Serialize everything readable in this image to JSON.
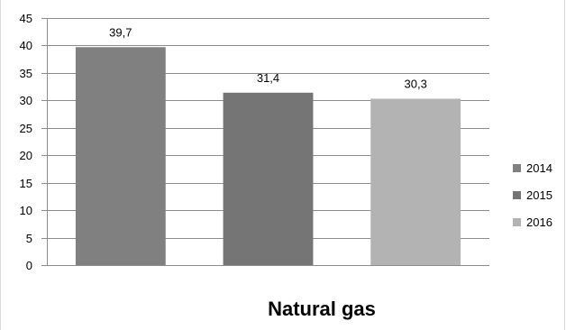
{
  "chart_data": {
    "type": "bar",
    "categories": [
      "Natural gas"
    ],
    "series": [
      {
        "name": "2014",
        "values": [
          39.7
        ],
        "label": "39,7",
        "color": "#808080"
      },
      {
        "name": "2015",
        "values": [
          31.4
        ],
        "label": "31,4",
        "color": "#757575"
      },
      {
        "name": "2016",
        "values": [
          30.3
        ],
        "label": "30,3",
        "color": "#b3b3b3"
      }
    ],
    "yticks": [
      "0",
      "5",
      "10",
      "15",
      "20",
      "25",
      "30",
      "35",
      "40",
      "45"
    ],
    "ylim": [
      0,
      45
    ],
    "grid": true,
    "legend_position": "right",
    "title": "Natural gas"
  }
}
